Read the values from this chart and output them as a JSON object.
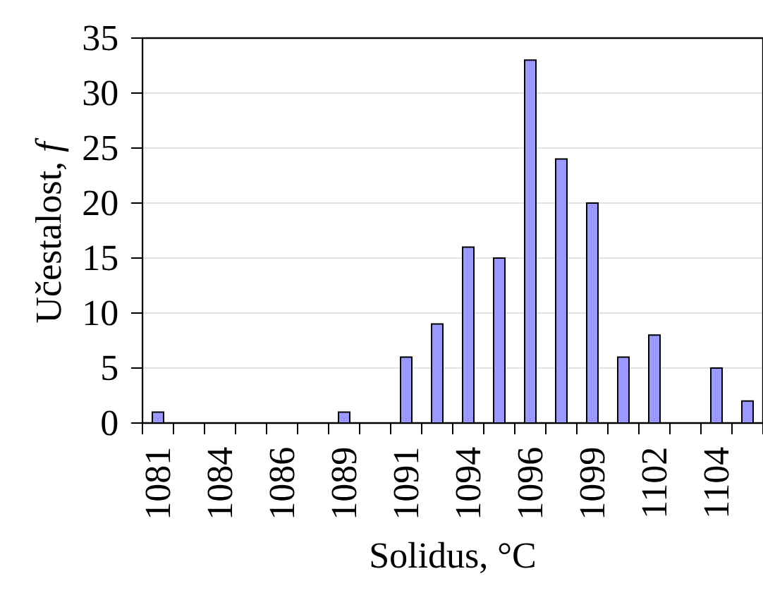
{
  "chart_data": {
    "type": "bar",
    "xlabel": "Solidus, °C",
    "ylabel": "Učestalost, *f*",
    "categories": [
      "1081",
      null,
      "1084",
      null,
      "1086",
      null,
      "1089",
      null,
      "1091",
      null,
      "1094",
      null,
      "1096",
      null,
      "1099",
      null,
      "1102",
      null,
      "1104",
      null
    ],
    "values": [
      1,
      0,
      0,
      0,
      0,
      0,
      1,
      0,
      6,
      9,
      16,
      15,
      33,
      24,
      20,
      6,
      8,
      0,
      5,
      2
    ],
    "color": "#9999ff",
    "ylim": [
      0,
      35
    ],
    "yticks": [
      0,
      5,
      10,
      15,
      20,
      25,
      30,
      35
    ],
    "grid": "y"
  }
}
